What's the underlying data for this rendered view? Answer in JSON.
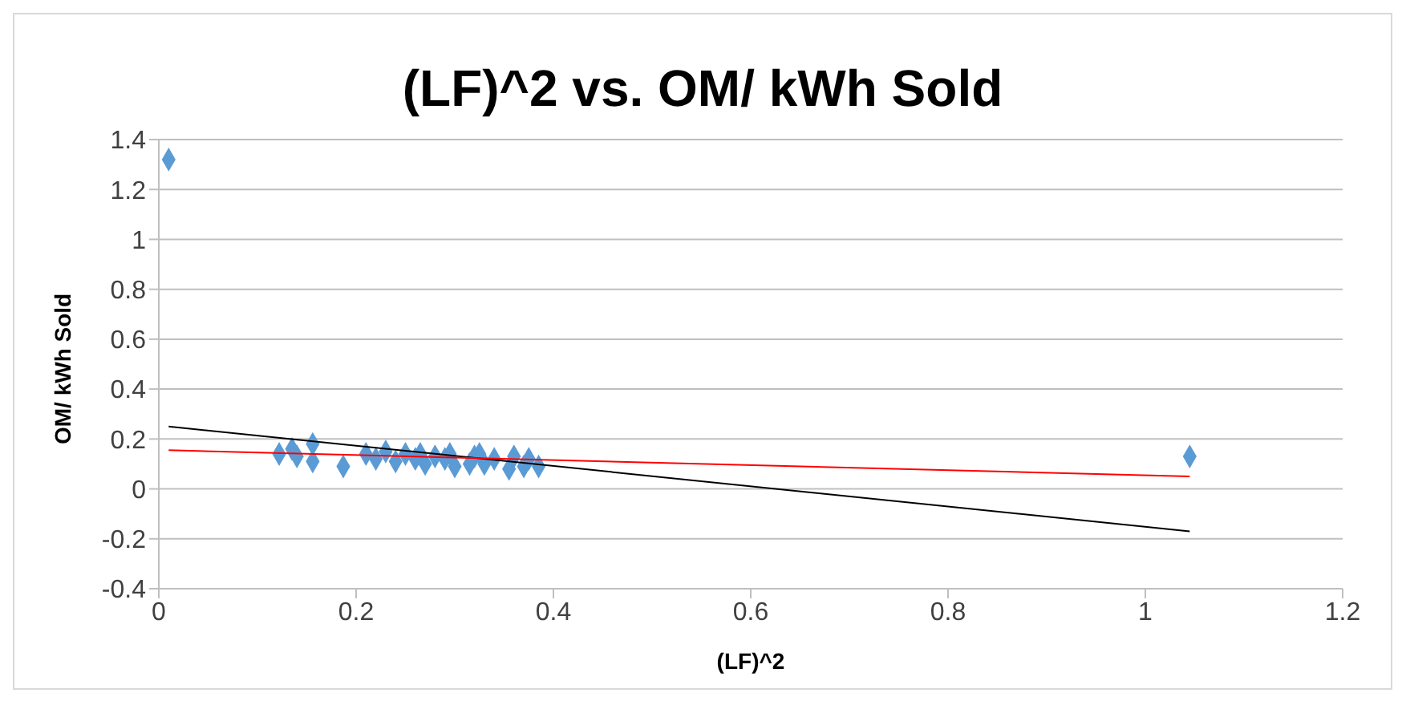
{
  "chart_data": {
    "type": "scatter",
    "title": "(LF)^2 vs. OM/ kWh Sold",
    "xlabel": "(LF)^2",
    "ylabel": "OM/ kWh Sold",
    "xlim": [
      0,
      1.2
    ],
    "xticks": [
      0,
      0.2,
      0.4,
      0.6,
      0.8,
      1,
      1.2
    ],
    "ylim": [
      -0.4,
      1.4
    ],
    "yticks": [
      -0.4,
      -0.2,
      0,
      0.2,
      0.4,
      0.6,
      0.8,
      1,
      1.2,
      1.4
    ],
    "grid": "y",
    "marker": "diamond",
    "series": [
      {
        "color": "#5b9bd5",
        "x": [
          0.01,
          0.122,
          0.135,
          0.14,
          0.156,
          0.156,
          0.187,
          0.21,
          0.22,
          0.23,
          0.24,
          0.25,
          0.26,
          0.265,
          0.27,
          0.28,
          0.29,
          0.295,
          0.3,
          0.31,
          0.315,
          0.32,
          0.325,
          0.33,
          0.34,
          0.35,
          0.355,
          0.36,
          0.37,
          0.375,
          0.385,
          1.045
        ],
        "values": [
          1.32,
          0.14,
          0.16,
          0.13,
          0.18,
          0.11,
          0.09,
          0.14,
          0.12,
          0.15,
          0.11,
          0.14,
          0.12,
          0.14,
          0.1,
          0.13,
          0.12,
          0.14,
          0.09,
          null,
          0.1,
          0.13,
          0.14,
          0.1,
          0.12,
          null,
          0.08,
          0.13,
          0.09,
          0.12,
          0.09,
          0.13
        ]
      },
      {
        "type": "line",
        "color": "#000000",
        "marker": "none",
        "x": [
          0.01,
          1.045
        ],
        "values": [
          0.25,
          -0.17
        ]
      },
      {
        "type": "line",
        "color": "#ff0000",
        "marker": "none",
        "x": [
          0.01,
          1.045
        ],
        "values": [
          0.155,
          0.05
        ]
      }
    ]
  }
}
